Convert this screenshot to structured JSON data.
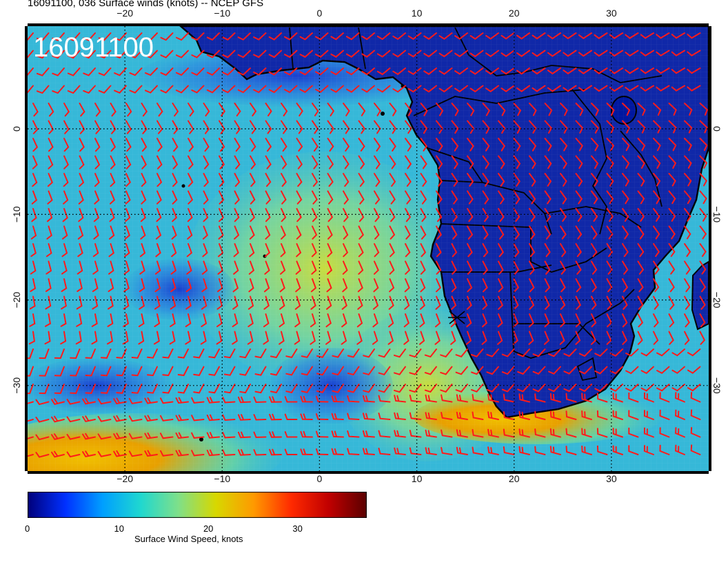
{
  "header": {
    "title": "16091100, 036 Surface winds (knots) -- NCEP GFS"
  },
  "map": {
    "timestamp_label": "16091100",
    "region": "South Atlantic and southern Africa",
    "lon_range": [
      -30,
      40
    ],
    "lat_range": [
      -40,
      12
    ],
    "lon_ticks": [
      "-20",
      "-10",
      "0",
      "10",
      "20",
      "30"
    ],
    "lat_ticks": [
      "0",
      "-10",
      "-20",
      "-30"
    ],
    "graticule": "dotted",
    "land_fill": "#1028a8",
    "ocean_base": "#36b8d8",
    "coastline_color": "#000000",
    "wind_barb_color": "#ff1a1a"
  },
  "colorbar": {
    "title": "Surface Wind Speed, knots",
    "range": [
      0,
      38
    ],
    "tick_labels": [
      "0",
      "10",
      "20",
      "30"
    ],
    "tick_values": [
      0,
      10,
      20,
      30
    ],
    "colormap": [
      "#00007a",
      "#0030ff",
      "#00a0ff",
      "#20d8d0",
      "#7fe08a",
      "#d8d800",
      "#ff9a00",
      "#ff2a00",
      "#c00000",
      "#5a0000"
    ]
  }
}
